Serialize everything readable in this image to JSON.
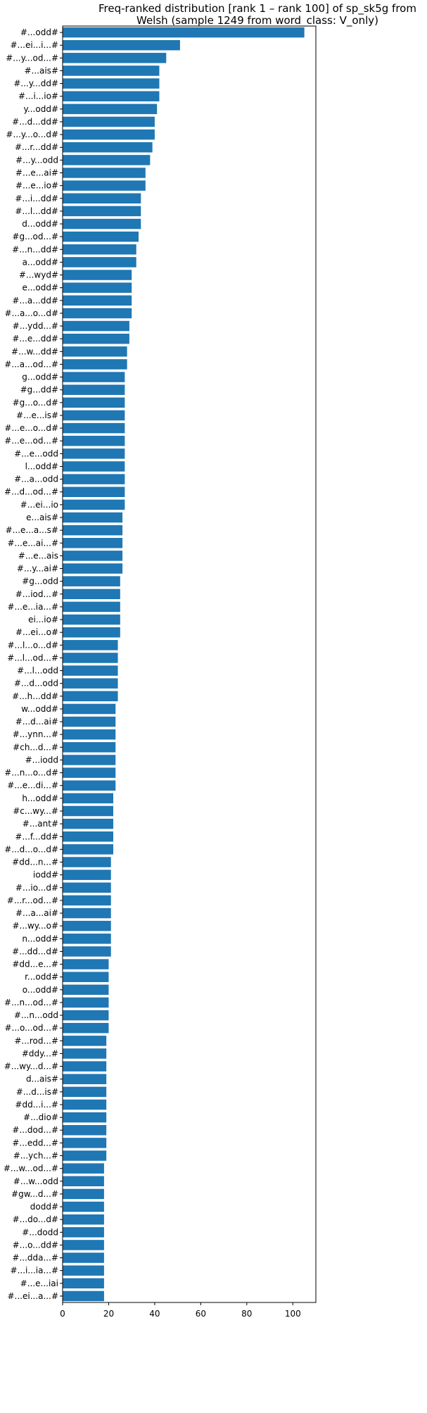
{
  "chart_data": {
    "type": "bar",
    "orientation": "horizontal",
    "title": "Freq-ranked distribution [rank 1 – rank 100] of sp_sk5g from",
    "subtitle": "Welsh (sample 1249 from word_class: V_only)",
    "xlabel": "",
    "ylabel": "",
    "xlim": [
      0,
      110
    ],
    "xticks": [
      0,
      20,
      40,
      60,
      80,
      100
    ],
    "grid": false,
    "bar_color": "#1f77b4",
    "categories": [
      "#...odd#",
      "#...ei...i...#",
      "#...y...od...#",
      "#...ais#",
      "#...y...dd#",
      "#...i...io#",
      "y...odd#",
      "#...d...dd#",
      "#...y...o...d#",
      "#...r...dd#",
      "#...y...odd",
      "#...e...ai#",
      "#...e...io#",
      "#...i...dd#",
      "#...l...dd#",
      "d...odd#",
      "#g...od...#",
      "#...n...dd#",
      "a...odd#",
      "#...wyd#",
      "e...odd#",
      "#...a...dd#",
      "#...a...o...d#",
      "#...ydd...#",
      "#...e...dd#",
      "#...w...dd#",
      "#...a...od...#",
      "g...odd#",
      "#g...dd#",
      "#g...o...d#",
      "#...e...is#",
      "#...e...o...d#",
      "#...e...od...#",
      "#...e...odd",
      "l...odd#",
      "#...a...odd",
      "#...d...od...#",
      "#...ei...io",
      "e...ais#",
      "#...e...a...s#",
      "#...e...ai...#",
      "#...e...ais",
      "#...y...ai#",
      "#g...odd",
      "#...iod...#",
      "#...e...ia...#",
      "ei...io#",
      "#...ei...o#",
      "#...l...o...d#",
      "#...l...od...#",
      "#...l...odd",
      "#...d...odd",
      "#...h...dd#",
      "w...odd#",
      "#...d...ai#",
      "#...ynn...#",
      "#ch...d...#",
      "#...iodd",
      "#...n...o...d#",
      "#...e...di...#",
      "h...odd#",
      "#c...wy...#",
      "#...ant#",
      "#...f...dd#",
      "#...d...o...d#",
      "#dd...n...#",
      "iodd#",
      "#...io...d#",
      "#...r...od...#",
      "#...a...ai#",
      "#...wy...o#",
      "n...odd#",
      "#...dd...d#",
      "#dd...e...#",
      "r...odd#",
      "o...odd#",
      "#...n...od...#",
      "#...n...odd",
      "#...o...od...#",
      "#...rod...#",
      "#ddy...#",
      "#...wy...d...#",
      "d...ais#",
      "#...d...is#",
      "#dd...i...#",
      "#...dio#",
      "#...dod...#",
      "#...edd...#",
      "#...ych...#",
      "#...w...od...#",
      "#...w...odd",
      "#gw...d...#",
      "dodd#",
      "#...do...d#",
      "#...dodd",
      "#...o...dd#",
      "#...dda...#",
      "#...i...ia...#",
      "#...e...iai",
      "#...ei...a...#"
    ],
    "values": [
      105,
      51,
      45,
      42,
      42,
      42,
      41,
      40,
      40,
      39,
      38,
      36,
      36,
      34,
      34,
      34,
      33,
      32,
      32,
      30,
      30,
      30,
      30,
      29,
      29,
      28,
      28,
      27,
      27,
      27,
      27,
      27,
      27,
      27,
      27,
      27,
      27,
      27,
      26,
      26,
      26,
      26,
      26,
      25,
      25,
      25,
      25,
      25,
      24,
      24,
      24,
      24,
      24,
      23,
      23,
      23,
      23,
      23,
      23,
      23,
      22,
      22,
      22,
      22,
      22,
      21,
      21,
      21,
      21,
      21,
      21,
      21,
      21,
      20,
      20,
      20,
      20,
      20,
      20,
      19,
      19,
      19,
      19,
      19,
      19,
      19,
      19,
      19,
      19,
      18,
      18,
      18,
      18,
      18,
      18,
      18,
      18,
      18,
      18,
      18
    ]
  }
}
